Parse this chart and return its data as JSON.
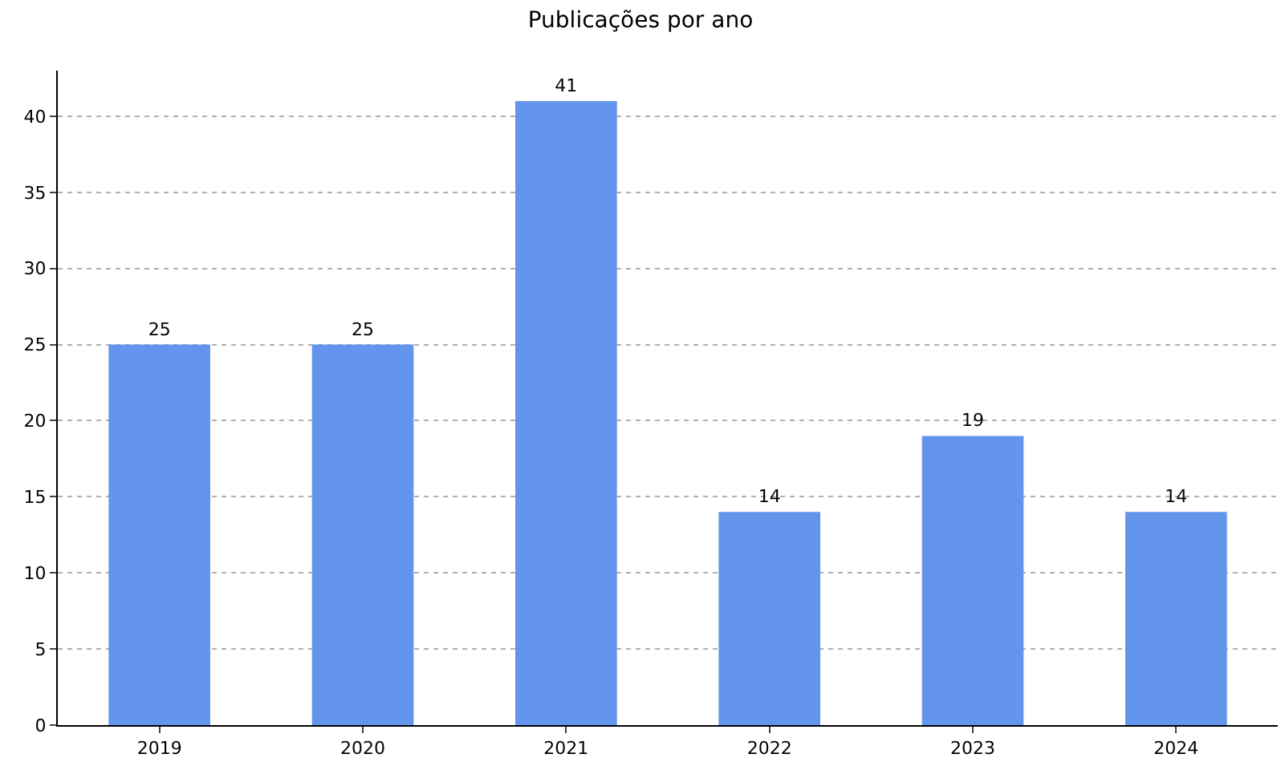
{
  "chart_data": {
    "type": "bar",
    "title": "Publicações por ano",
    "categories": [
      "2019",
      "2020",
      "2021",
      "2022",
      "2023",
      "2024"
    ],
    "values": [
      25,
      25,
      41,
      14,
      19,
      14
    ],
    "color": "#6495ed",
    "ylim": [
      0,
      43
    ],
    "yticks": [
      0,
      5,
      10,
      15,
      20,
      25,
      30,
      35,
      40
    ],
    "grid": "y",
    "data_labels": true
  }
}
